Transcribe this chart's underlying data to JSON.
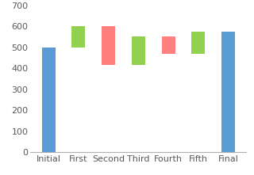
{
  "categories": [
    "Initial",
    "First",
    "Second",
    "Third",
    "Fourth",
    "Fifth",
    "Final"
  ],
  "bar_bottoms": [
    0,
    500,
    415,
    415,
    470,
    470,
    0
  ],
  "bar_heights": [
    500,
    100,
    185,
    135,
    80,
    105,
    575
  ],
  "bar_colors": [
    "#5b9bd5",
    "#92d050",
    "#ff7f7f",
    "#92d050",
    "#ff8080",
    "#92d050",
    "#5b9bd5"
  ],
  "ylim": [
    0,
    700
  ],
  "yticks": [
    0,
    100,
    200,
    300,
    400,
    500,
    600,
    700
  ],
  "bg_color": "#ffffff",
  "axis_color": "#b0b0b0",
  "tick_label_fontsize": 8,
  "bar_width": 0.45,
  "figsize": [
    3.2,
    2.21
  ],
  "dpi": 100
}
